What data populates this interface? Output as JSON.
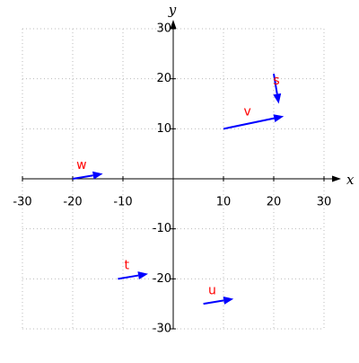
{
  "chart_data": {
    "type": "vector",
    "xlabel": "x",
    "ylabel": "y",
    "xlim": [
      -30,
      30
    ],
    "ylim": [
      -30,
      30
    ],
    "xticks": [
      -30,
      -20,
      -10,
      10,
      20,
      30
    ],
    "yticks": [
      -30,
      -20,
      -10,
      10,
      20,
      30
    ],
    "grid": true,
    "color": "#0000ff",
    "label_color": "#ff0000",
    "vectors": [
      {
        "name": "s",
        "x0": 20,
        "y0": 21,
        "x1": 21,
        "y1": 15
      },
      {
        "name": "v",
        "x0": 10,
        "y0": 10,
        "x1": 22,
        "y1": 12.5
      },
      {
        "name": "w",
        "x0": -20,
        "y0": 0,
        "x1": -14,
        "y1": 1
      },
      {
        "name": "t",
        "x0": -11,
        "y0": -20,
        "x1": -5,
        "y1": -19
      },
      {
        "name": "u",
        "x0": 6,
        "y0": -25,
        "x1": 12,
        "y1": -24
      }
    ]
  }
}
